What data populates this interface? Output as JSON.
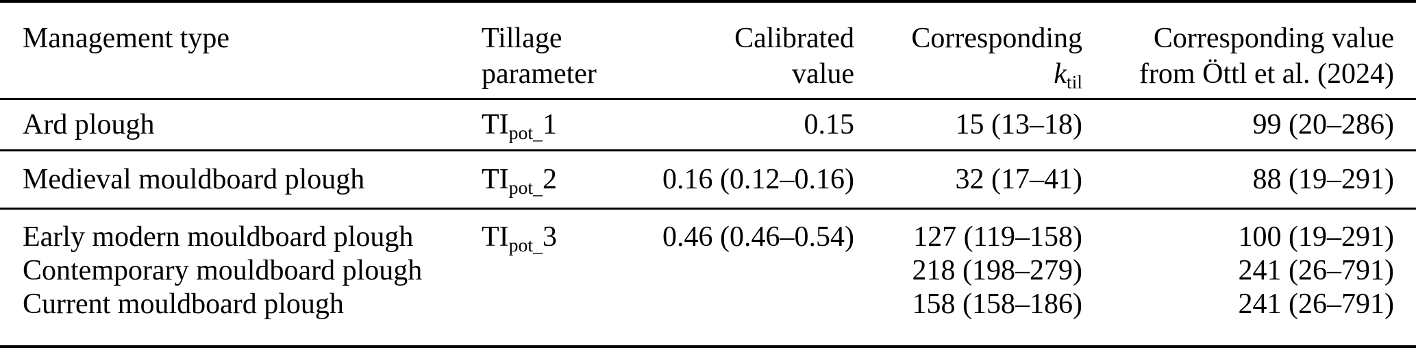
{
  "colors": {
    "text": "#000000",
    "rule": "#000000",
    "background": "#ffffff"
  },
  "table": {
    "header": {
      "management": "Management type",
      "tillage_line1": "Tillage",
      "tillage_line2": "parameter",
      "calibrated_line1": "Calibrated",
      "calibrated_line2": "value",
      "ktil_line1": "Corresponding",
      "ktil_symbol_base": "k",
      "ktil_symbol_sub": "til",
      "oettl_line1": "Corresponding value",
      "oettl_line2": "from Öttl et al. (2024)"
    },
    "groups": [
      {
        "management": [
          "Ard plough"
        ],
        "param_base": "TI",
        "param_sub": "pot_",
        "param_tail": "1",
        "calibrated": "0.15",
        "ktil": [
          "15 (13–18)"
        ],
        "oettl": [
          "99 (20–286)"
        ]
      },
      {
        "management": [
          "Medieval mouldboard plough"
        ],
        "param_base": "TI",
        "param_sub": "pot_",
        "param_tail": "2",
        "calibrated": "0.16 (0.12–0.16)",
        "ktil": [
          "32 (17–41)"
        ],
        "oettl": [
          "88 (19–291)"
        ]
      },
      {
        "management": [
          "Early modern mouldboard plough",
          "Contemporary mouldboard plough",
          "Current mouldboard plough"
        ],
        "param_base": "TI",
        "param_sub": "pot_",
        "param_tail": "3",
        "calibrated": "0.46 (0.46–0.54)",
        "ktil": [
          "127 (119–158)",
          "218 (198–279)",
          "158 (158–186)"
        ],
        "oettl": [
          "100 (19–291)",
          "241 (26–791)",
          "241 (26–791)"
        ]
      }
    ]
  }
}
